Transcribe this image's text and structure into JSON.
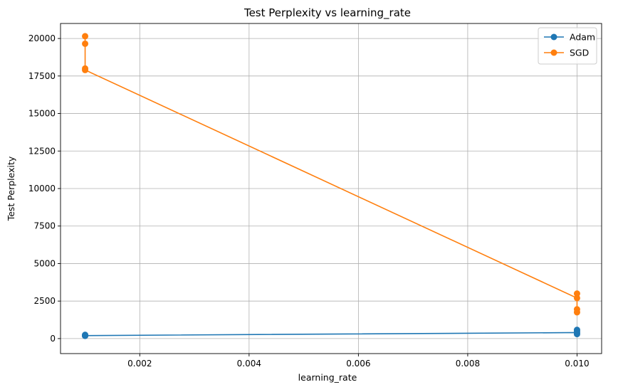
{
  "chart_data": {
    "type": "line",
    "title": "Test Perplexity vs learning_rate",
    "xlabel": "learning_rate",
    "ylabel": "Test Perplexity",
    "xlim": [
      0.00055,
      0.01045
    ],
    "ylim": [
      -1000,
      21000
    ],
    "xticks": [
      0.002,
      0.004,
      0.006,
      0.008,
      0.01
    ],
    "xtick_labels": [
      "0.002",
      "0.004",
      "0.006",
      "0.008",
      "0.010"
    ],
    "yticks": [
      0,
      2500,
      5000,
      7500,
      10000,
      12500,
      15000,
      17500,
      20000
    ],
    "ytick_labels": [
      "0",
      "2500",
      "5000",
      "7500",
      "10000",
      "12500",
      "15000",
      "17500",
      "20000"
    ],
    "grid": true,
    "legend_position": "top-right",
    "series": [
      {
        "name": "Adam",
        "color": "#1f77b4",
        "x": [
          0.001,
          0.001,
          0.001,
          0.001,
          0.01,
          0.01,
          0.01,
          0.01
        ],
        "y": [
          250,
          200,
          180,
          200,
          400,
          300,
          500,
          580
        ]
      },
      {
        "name": "SGD",
        "color": "#ff7f0e",
        "x": [
          0.001,
          0.001,
          0.001,
          0.001,
          0.01,
          0.01,
          0.01,
          0.01
        ],
        "y": [
          20150,
          19650,
          18000,
          17900,
          2700,
          3000,
          1950,
          1750
        ]
      }
    ]
  }
}
